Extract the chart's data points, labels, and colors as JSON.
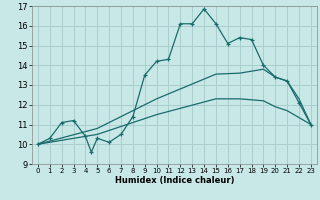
{
  "title": "",
  "xlabel": "Humidex (Indice chaleur)",
  "bg_color": "#c8e8e8",
  "grid_color": "#aacece",
  "line_color": "#1a6b6b",
  "xlim": [
    -0.5,
    23.5
  ],
  "ylim": [
    9,
    17
  ],
  "xticks": [
    0,
    1,
    2,
    3,
    4,
    5,
    6,
    7,
    8,
    9,
    10,
    11,
    12,
    13,
    14,
    15,
    16,
    17,
    18,
    19,
    20,
    21,
    22,
    23
  ],
  "yticks": [
    9,
    10,
    11,
    12,
    13,
    14,
    15,
    16,
    17
  ],
  "line1_x": [
    0,
    1,
    2,
    3,
    4,
    4.5,
    5,
    6,
    7,
    8,
    9,
    10,
    11,
    12,
    13,
    14,
    15,
    16,
    17,
    18,
    19,
    20,
    21,
    22,
    23
  ],
  "line1_y": [
    10.0,
    10.3,
    11.1,
    11.2,
    10.4,
    9.6,
    10.3,
    10.1,
    10.5,
    11.4,
    13.5,
    14.2,
    14.3,
    16.1,
    16.1,
    16.85,
    16.1,
    15.1,
    15.4,
    15.3,
    14.0,
    13.4,
    13.2,
    12.1,
    11.0
  ],
  "line2_x": [
    0,
    5,
    10,
    15,
    17,
    19,
    20,
    21,
    22,
    23
  ],
  "line2_y": [
    10.0,
    10.8,
    12.3,
    13.55,
    13.6,
    13.8,
    13.4,
    13.2,
    12.3,
    11.0
  ],
  "line3_x": [
    0,
    5,
    10,
    15,
    17,
    19,
    20,
    21,
    22,
    23
  ],
  "line3_y": [
    10.0,
    10.5,
    11.5,
    12.3,
    12.3,
    12.2,
    11.9,
    11.7,
    11.35,
    11.0
  ]
}
